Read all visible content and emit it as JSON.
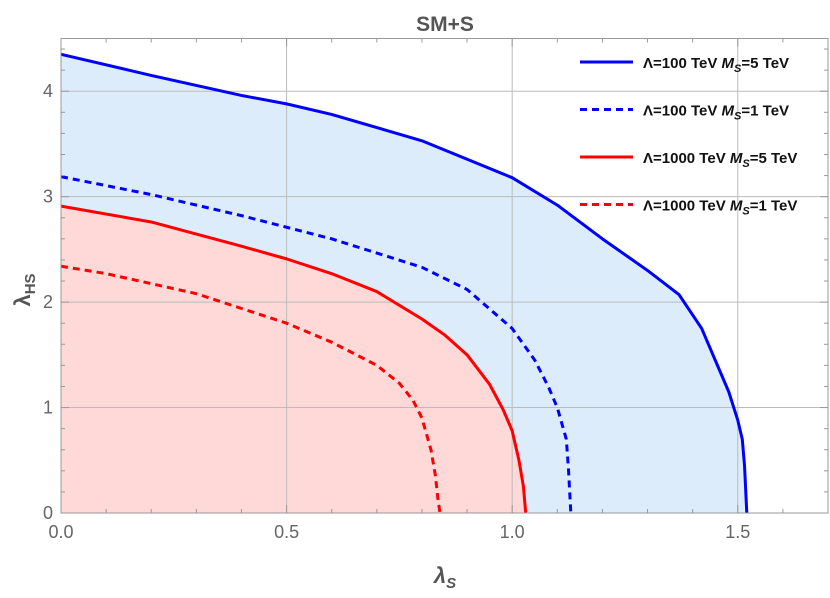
{
  "chart_data": {
    "type": "line",
    "title": "SM+S",
    "xlabel": "λS",
    "ylabel": "λHS",
    "xlim": [
      0,
      1.7
    ],
    "ylim": [
      0,
      4.5
    ],
    "xticks": [
      "0.0",
      "0.5",
      "1.0",
      "1.5"
    ],
    "yticks": [
      "0",
      "1",
      "2",
      "3",
      "4"
    ],
    "grid": true,
    "legend_position": "top-right",
    "colors": {
      "blue": "#0000ff",
      "red": "#ff0000",
      "blue_fill": "#dcecfb",
      "red_fill": "#ffd8d8"
    },
    "series": [
      {
        "name": "Λ=100 TeV MS=5 TeV",
        "legend": {
          "pre": "Λ=100 TeV ",
          "m": "M",
          "sub": "S",
          "post": "=5 TeV"
        },
        "color": "#0000ff",
        "dash": false,
        "fill": true,
        "x": [
          0,
          0.2,
          0.4,
          0.5,
          0.6,
          0.8,
          1.0,
          1.1,
          1.2,
          1.3,
          1.37,
          1.42,
          1.45,
          1.48,
          1.5,
          1.51,
          1.515,
          1.52
        ],
        "y": [
          4.35,
          4.15,
          3.96,
          3.88,
          3.78,
          3.53,
          3.18,
          2.92,
          2.6,
          2.3,
          2.07,
          1.75,
          1.45,
          1.15,
          0.88,
          0.7,
          0.45,
          0
        ]
      },
      {
        "name": "Λ=100 TeV MS=1 TeV",
        "legend": {
          "pre": "Λ=100 TeV ",
          "m": "M",
          "sub": "S",
          "post": "=1 TeV"
        },
        "color": "#0000ff",
        "dash": true,
        "fill": false,
        "x": [
          0,
          0.2,
          0.4,
          0.5,
          0.6,
          0.8,
          0.9,
          1.0,
          1.05,
          1.08,
          1.1,
          1.12,
          1.125,
          1.13
        ],
        "y": [
          3.19,
          3.02,
          2.82,
          2.71,
          2.6,
          2.33,
          2.12,
          1.75,
          1.45,
          1.2,
          1.0,
          0.7,
          0.4,
          0
        ]
      },
      {
        "name": "Λ=1000 TeV MS=5 TeV",
        "legend": {
          "pre": "Λ=1000 TeV ",
          "m": "M",
          "sub": "S",
          "post": "=5 TeV"
        },
        "color": "#ff0000",
        "dash": false,
        "fill": true,
        "x": [
          0,
          0.2,
          0.4,
          0.5,
          0.6,
          0.7,
          0.8,
          0.85,
          0.9,
          0.95,
          0.98,
          1.0,
          1.015,
          1.025,
          1.03
        ],
        "y": [
          2.91,
          2.76,
          2.53,
          2.41,
          2.27,
          2.1,
          1.84,
          1.69,
          1.5,
          1.22,
          0.98,
          0.78,
          0.5,
          0.25,
          0
        ]
      },
      {
        "name": "Λ=1000 TeV MS=1 TeV",
        "legend": {
          "pre": "Λ=1000 TeV ",
          "m": "M",
          "sub": "S",
          "post": "=1 TeV"
        },
        "color": "#ff0000",
        "dash": true,
        "fill": false,
        "x": [
          0,
          0.1,
          0.3,
          0.5,
          0.6,
          0.7,
          0.75,
          0.78,
          0.8,
          0.82,
          0.83,
          0.835,
          0.84
        ],
        "y": [
          2.34,
          2.27,
          2.08,
          1.8,
          1.62,
          1.4,
          1.23,
          1.07,
          0.9,
          0.6,
          0.35,
          0.15,
          0
        ]
      }
    ]
  }
}
